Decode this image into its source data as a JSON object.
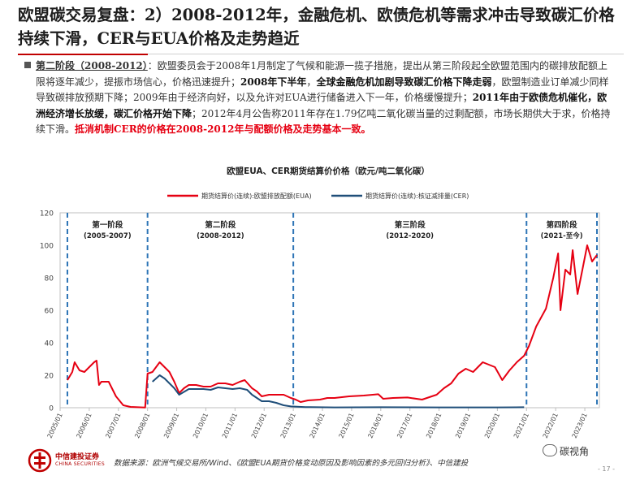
{
  "title": "欧盟碳交易复盘：2）2008-2012年，金融危机、欧债危机等需求冲击导致碳汇价格持续下滑，CER与EUA价格及走势趋近",
  "body": {
    "phase_label": "第二阶段（2008-2012）",
    "s1": "：欧盟委员会于2008年1月制定了气候和能源一揽子措施，提出从第三阶段起全欧盟范围内的碳排放配额上限将逐年减少，提振市场信心，价格迅速提升；",
    "s2": "2008年下半年",
    "s3": "，",
    "s4": "全球金融危机加剧导致碳汇价格下降走弱",
    "s5": "，欧盟制造业订单减少同样导致碳排放预期下降；2009年由于经济向好，以及允许对EUA进行储备进入下一年，价格缓慢提升；",
    "s6": "2011年由于欧债危机催化，欧洲经济增长放缓，碳汇价格开始下降",
    "s7": "；2012年4月公告称2011年存在1.79亿吨二氧化碳当量的过剩配额，市场长期供大于求，价格持续下滑。",
    "s8": "抵消机制CER的价格在2008-2012年与配额价格及走势基本一致。"
  },
  "footer": {
    "company": "中信建投证券",
    "company_en": "CHINA SECURITIES",
    "source": "数据来源：欧洲气候交易所/Wind、《欧盟EUA期货价格变动原因及影响因素的多元回归分析》、中信建投",
    "watermark": "碳视角",
    "page": "- 17 -"
  },
  "colors": {
    "eua": "#e60012",
    "cer": "#1f4e79",
    "divider": "#2e75b6",
    "title_red": "#c00000"
  },
  "chart_data": {
    "type": "line",
    "title": "欧盟EUA、CER期货结算价价格（欧元/吨二氧化碳）",
    "xlabel": "",
    "ylabel": "",
    "ylim": [
      0,
      120
    ],
    "yticks": [
      0,
      20,
      40,
      60,
      80,
      100,
      120
    ],
    "x_ticks": [
      "2005/01",
      "2006/01",
      "2007/01",
      "2008/01",
      "2009/01",
      "2010/01",
      "2011/01",
      "2012/01",
      "2013/01",
      "2014/01",
      "2015/01",
      "2016/01",
      "2017/01",
      "2018/01",
      "2019/01",
      "2020/01",
      "2021/01",
      "2022/01",
      "2023/01"
    ],
    "grid": false,
    "legend": "top",
    "phases": [
      {
        "name": "第一阶段",
        "period": "(2005-2007)",
        "start": "2005/04",
        "end": "2008/01"
      },
      {
        "name": "第二阶段",
        "period": "(2008-2012)",
        "start": "2008/01",
        "end": "2013/01"
      },
      {
        "name": "第三阶段",
        "period": "(2012-2020)",
        "start": "2013/01",
        "end": "2021/01"
      },
      {
        "name": "第四阶段",
        "period": "(2021-至今)",
        "start": "2021/01",
        "end": "2023/06"
      }
    ],
    "series": [
      {
        "name": "期货结算价(连续):欧盟排放配额(EUA)",
        "color": "#e60012",
        "points": [
          [
            "2005/04",
            17
          ],
          [
            "2005/06",
            22
          ],
          [
            "2005/07",
            28
          ],
          [
            "2005/09",
            23
          ],
          [
            "2005/11",
            22
          ],
          [
            "2006/01",
            25
          ],
          [
            "2006/03",
            28
          ],
          [
            "2006/04",
            29
          ],
          [
            "2006/05",
            14
          ],
          [
            "2006/06",
            16
          ],
          [
            "2006/09",
            16
          ],
          [
            "2006/12",
            7
          ],
          [
            "2007/03",
            1.5
          ],
          [
            "2007/06",
            0.5
          ],
          [
            "2007/12",
            0.1
          ],
          [
            "2008/01",
            21
          ],
          [
            "2008/03",
            22
          ],
          [
            "2008/06",
            28
          ],
          [
            "2008/08",
            25
          ],
          [
            "2008/10",
            22
          ],
          [
            "2008/12",
            16
          ],
          [
            "2009/02",
            9
          ],
          [
            "2009/04",
            12
          ],
          [
            "2009/06",
            14
          ],
          [
            "2009/09",
            14
          ],
          [
            "2009/12",
            13
          ],
          [
            "2010/03",
            13
          ],
          [
            "2010/06",
            15
          ],
          [
            "2010/09",
            15
          ],
          [
            "2010/12",
            14
          ],
          [
            "2011/03",
            16
          ],
          [
            "2011/05",
            17
          ],
          [
            "2011/08",
            12
          ],
          [
            "2011/10",
            10
          ],
          [
            "2011/12",
            7
          ],
          [
            "2012/03",
            8
          ],
          [
            "2012/06",
            8
          ],
          [
            "2012/09",
            8
          ],
          [
            "2012/12",
            6
          ],
          [
            "2013/02",
            5
          ],
          [
            "2013/04",
            3.5
          ],
          [
            "2013/07",
            4.5
          ],
          [
            "2013/12",
            5
          ],
          [
            "2014/03",
            6
          ],
          [
            "2014/06",
            6
          ],
          [
            "2014/12",
            7
          ],
          [
            "2015/06",
            7.5
          ],
          [
            "2015/12",
            8.3
          ],
          [
            "2016/02",
            5.5
          ],
          [
            "2016/06",
            6
          ],
          [
            "2016/12",
            6.3
          ],
          [
            "2017/06",
            5
          ],
          [
            "2017/12",
            8
          ],
          [
            "2018/03",
            12
          ],
          [
            "2018/06",
            15
          ],
          [
            "2018/09",
            21
          ],
          [
            "2018/12",
            24
          ],
          [
            "2019/03",
            22
          ],
          [
            "2019/07",
            28
          ],
          [
            "2019/12",
            25
          ],
          [
            "2020/03",
            17
          ],
          [
            "2020/06",
            23
          ],
          [
            "2020/09",
            28
          ],
          [
            "2020/12",
            32
          ],
          [
            "2021/02",
            38
          ],
          [
            "2021/05",
            50
          ],
          [
            "2021/09",
            61
          ],
          [
            "2021/12",
            80
          ],
          [
            "2022/02",
            95
          ],
          [
            "2022/03",
            60
          ],
          [
            "2022/05",
            85
          ],
          [
            "2022/07",
            82
          ],
          [
            "2022/08",
            97
          ],
          [
            "2022/10",
            70
          ],
          [
            "2022/12",
            85
          ],
          [
            "2023/02",
            100
          ],
          [
            "2023/04",
            90
          ],
          [
            "2023/06",
            94
          ]
        ]
      },
      {
        "name": "期货结算价(连续):核证减排量(CER)",
        "color": "#1f4e79",
        "points": [
          [
            "2008/03",
            16
          ],
          [
            "2008/06",
            20
          ],
          [
            "2008/08",
            18
          ],
          [
            "2008/10",
            15
          ],
          [
            "2008/12",
            12
          ],
          [
            "2009/02",
            8
          ],
          [
            "2009/06",
            11.5
          ],
          [
            "2009/12",
            11.5
          ],
          [
            "2010/03",
            11
          ],
          [
            "2010/06",
            12.5
          ],
          [
            "2010/09",
            12
          ],
          [
            "2010/12",
            11.5
          ],
          [
            "2011/03",
            12
          ],
          [
            "2011/06",
            11
          ],
          [
            "2011/08",
            8
          ],
          [
            "2011/12",
            4
          ],
          [
            "2012/03",
            4
          ],
          [
            "2012/06",
            3
          ],
          [
            "2012/09",
            1.5
          ],
          [
            "2012/12",
            0.8
          ],
          [
            "2013/06",
            0.4
          ],
          [
            "2014/06",
            0.2
          ],
          [
            "2016/01",
            0.3
          ],
          [
            "2018/01",
            0.2
          ],
          [
            "2020/01",
            0.2
          ],
          [
            "2020/12",
            0.3
          ]
        ]
      }
    ]
  }
}
